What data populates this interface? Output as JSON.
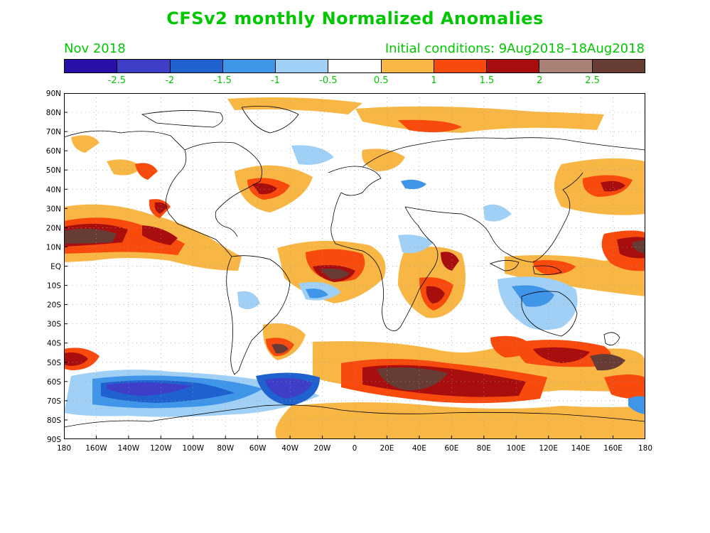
{
  "header": {
    "title": "CFSv2 monthly Normalized Anomalies",
    "month": "Nov 2018",
    "initial_conditions": "Initial conditions: 9Aug2018–18Aug2018"
  },
  "colorbar": {
    "colors": [
      "#2a0ea8",
      "#3e3ec8",
      "#1f62cf",
      "#3f96e8",
      "#a0d0f5",
      "#ffffff",
      "#f8b745",
      "#f84a0c",
      "#a80e0e",
      "#a88076",
      "#663c34"
    ],
    "labels": [
      "-2.5",
      "-2",
      "-1.5",
      "-1",
      "-0.5",
      "0.5",
      "1",
      "1.5",
      "2",
      "2.5"
    ]
  },
  "map": {
    "lat_labels": [
      "90N",
      "80N",
      "70N",
      "60N",
      "50N",
      "40N",
      "30N",
      "20N",
      "10N",
      "EQ",
      "10S",
      "20S",
      "30S",
      "40S",
      "50S",
      "60S",
      "70S",
      "80S",
      "90S"
    ],
    "lon_labels": [
      "180",
      "160W",
      "140W",
      "120W",
      "100W",
      "80W",
      "60W",
      "40W",
      "20W",
      "0",
      "20E",
      "40E",
      "60E",
      "80E",
      "100E",
      "120E",
      "140E",
      "160E",
      "180"
    ]
  }
}
